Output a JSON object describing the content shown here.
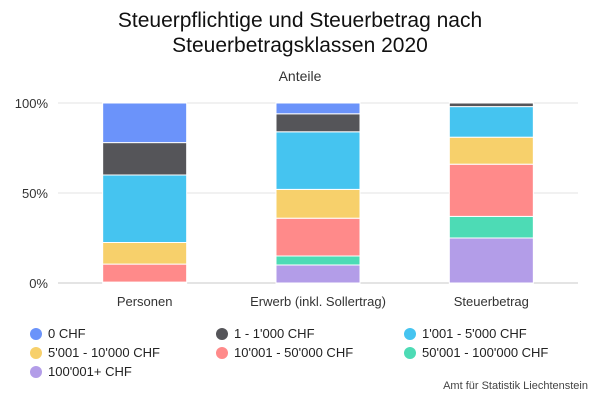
{
  "chart_data": {
    "type": "bar",
    "stacked": true,
    "title": "Steuerpflichtige und Steuerbetrag nach Steuerbetragsklassen 2020",
    "title_lines": [
      "Steuerpflichtige und Steuerbetrag nach",
      "Steuerbetragsklassen 2020"
    ],
    "subtitle": "Anteile",
    "categories": [
      "Personen",
      "Erwerb (inkl. Sollertrag)",
      "Steuerbetrag"
    ],
    "ylim": [
      0,
      100
    ],
    "yticks": [
      {
        "value": 0,
        "label": "0%"
      },
      {
        "value": 50,
        "label": "50%"
      },
      {
        "value": 100,
        "label": "100%"
      }
    ],
    "grid": true,
    "legend_position": "bottom",
    "series": [
      {
        "name": "100'001+ CHF",
        "color": "#B39DE8",
        "values": [
          0.0,
          10.0,
          25.0
        ]
      },
      {
        "name": "50'001 - 100'000 CHF",
        "color": "#4DDBB5",
        "values": [
          0.5,
          5.0,
          12.0
        ]
      },
      {
        "name": "10'001 - 50'000 CHF",
        "color": "#FF8A8A",
        "values": [
          10.0,
          21.0,
          29.0
        ]
      },
      {
        "name": "5'001 - 10'000 CHF",
        "color": "#F7D06B",
        "values": [
          12.0,
          16.0,
          15.0
        ]
      },
      {
        "name": "1'001 - 5'000 CHF",
        "color": "#45C4F0",
        "values": [
          37.5,
          32.0,
          17.0
        ]
      },
      {
        "name": "1 - 1'000 CHF",
        "color": "#555559",
        "values": [
          18.0,
          10.0,
          2.0
        ]
      },
      {
        "name": "0 CHF",
        "color": "#6B93FA",
        "values": [
          22.0,
          6.0,
          0.0
        ]
      }
    ],
    "legend_order": [
      "0 CHF",
      "1 - 1'000 CHF",
      "1'001 - 5'000 CHF",
      "5'001 - 10'000 CHF",
      "10'001 - 50'000 CHF",
      "50'001 - 100'000 CHF",
      "100'001+ CHF"
    ]
  },
  "source": "Amt für Statistik Liechtenstein"
}
